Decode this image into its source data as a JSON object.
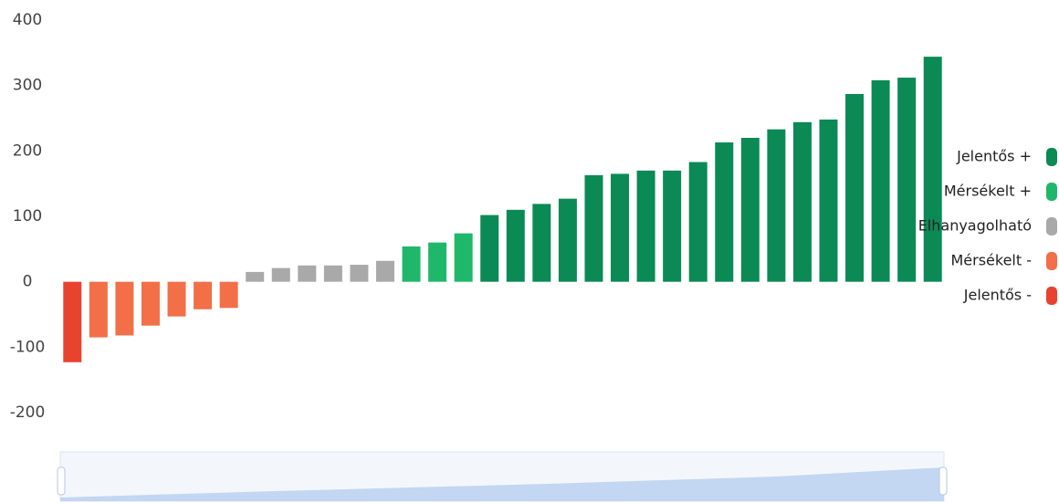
{
  "chart_data": {
    "type": "bar",
    "categories": [
      null,
      null,
      null,
      null,
      null,
      null,
      null,
      null,
      null,
      null,
      null,
      null,
      null,
      null,
      null,
      null,
      null,
      null,
      null,
      null,
      null,
      null,
      null,
      null,
      null,
      null,
      null,
      null,
      null,
      null,
      null,
      null,
      null,
      null
    ],
    "series": [
      {
        "name": "Jelentős +",
        "color": "#0b8a56",
        "values": [
          null,
          null,
          null,
          null,
          null,
          null,
          null,
          null,
          null,
          null,
          null,
          null,
          null,
          null,
          null,
          null,
          102,
          110,
          119,
          127,
          163,
          165,
          170,
          170,
          183,
          213,
          220,
          233,
          244,
          248,
          287,
          308,
          312,
          344
        ]
      },
      {
        "name": "Mérsékelt +",
        "color": "#1fb86b",
        "values": [
          null,
          null,
          null,
          null,
          null,
          null,
          null,
          null,
          null,
          null,
          null,
          null,
          null,
          54,
          60,
          74,
          null,
          null,
          null,
          null,
          null,
          null,
          null,
          null,
          null,
          null,
          null,
          null,
          null,
          null,
          null,
          null,
          null,
          null
        ]
      },
      {
        "name": "Elhanyagolható",
        "color": "#a9a9a9",
        "values": [
          null,
          null,
          null,
          null,
          null,
          null,
          null,
          15,
          21,
          25,
          25,
          26,
          32,
          null,
          null,
          null,
          null,
          null,
          null,
          null,
          null,
          null,
          null,
          null,
          null,
          null,
          null,
          null,
          null,
          null,
          null,
          null,
          null,
          null
        ]
      },
      {
        "name": "Mérsékelt -",
        "color": "#f26f47",
        "values": [
          null,
          -85,
          -82,
          -67,
          -53,
          -42,
          -40,
          null,
          null,
          null,
          null,
          null,
          null,
          null,
          null,
          null,
          null,
          null,
          null,
          null,
          null,
          null,
          null,
          null,
          null,
          null,
          null,
          null,
          null,
          null,
          null,
          null,
          null,
          null
        ]
      },
      {
        "name": "Jelentős -",
        "color": "#e8432e",
        "values": [
          -123,
          null,
          null,
          null,
          null,
          null,
          null,
          null,
          null,
          null,
          null,
          null,
          null,
          null,
          null,
          null,
          null,
          null,
          null,
          null,
          null,
          null,
          null,
          null,
          null,
          null,
          null,
          null,
          null,
          null,
          null,
          null,
          null,
          null
        ]
      }
    ],
    "ylim": [
      -200,
      400
    ],
    "yticks": [
      400,
      300,
      200,
      100,
      0,
      -100,
      -200
    ],
    "grid": false,
    "legend": "right"
  }
}
